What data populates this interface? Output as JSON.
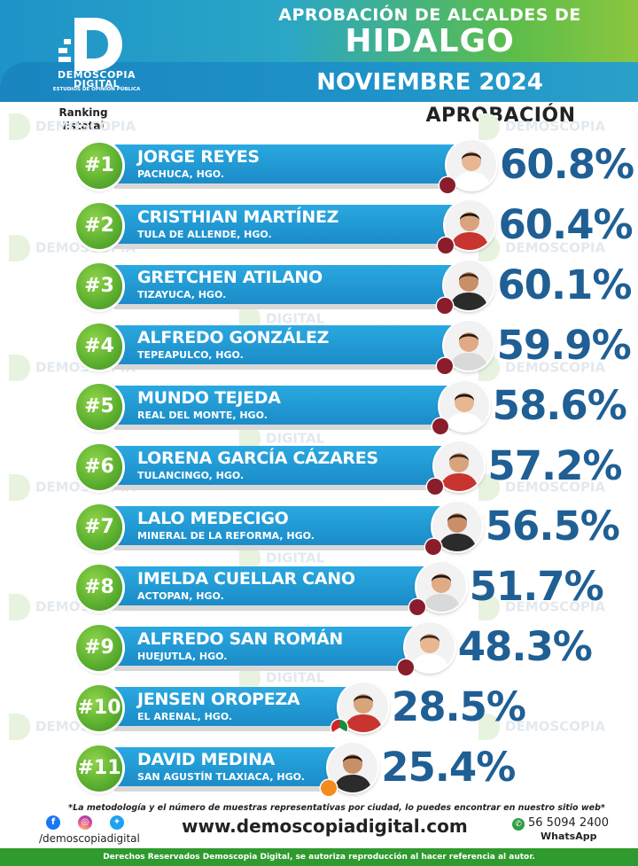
{
  "brand": {
    "name_line1": "DEMOSCOPIA",
    "name_line2": "DIGITAL",
    "tagline": "ESTUDIOS DE OPINIÓN PÚBLICA",
    "colors": {
      "blue": "#1e93c9",
      "green": "#5aae2e",
      "dark_blue": "#1f5f94"
    }
  },
  "header": {
    "line1": "APROBACIÓN DE ALCALDES DE",
    "line2": "HIDALGO",
    "line3": "NOVIEMBRE 2024"
  },
  "labels": {
    "ranking": "Ranking",
    "estatal": "Estatal",
    "aprobacion": "APROBACIÓN"
  },
  "chart_data": {
    "type": "bar",
    "title": "APROBACIÓN DE ALCALDES DE HIDALGO",
    "subtitle": "NOVIEMBRE 2024",
    "ylabel": "APROBACIÓN",
    "unit": "%",
    "categories": [
      "JORGE REYES",
      "CRISTHIAN MARTÍNEZ",
      "GRETCHEN ATILANO",
      "ALFREDO GONZÁLEZ",
      "MUNDO TEJEDA",
      "LORENA GARCÍA CÁZARES",
      "LALO MEDECIGO",
      "IMELDA CUELLAR CANO",
      "ALFREDO SAN ROMÁN",
      "JENSEN OROPEZA",
      "DAVID MEDINA"
    ],
    "values": [
      60.8,
      60.4,
      60.1,
      59.9,
      58.6,
      57.2,
      56.5,
      51.7,
      48.3,
      28.5,
      25.4
    ],
    "rows": [
      {
        "rank": "#1",
        "name": "JORGE REYES",
        "city": "PACHUCA, HGO.",
        "value": 60.8,
        "label": "60.8%",
        "party": "morena"
      },
      {
        "rank": "#2",
        "name": "CRISTHIAN MARTÍNEZ",
        "city": "TULA DE ALLENDE, HGO.",
        "value": 60.4,
        "label": "60.4%",
        "party": "morena"
      },
      {
        "rank": "#3",
        "name": "GRETCHEN ATILANO",
        "city": "TIZAYUCA, HGO.",
        "value": 60.1,
        "label": "60.1%",
        "party": "morena"
      },
      {
        "rank": "#4",
        "name": "ALFREDO GONZÁLEZ",
        "city": "TEPEAPULCO, HGO.",
        "value": 59.9,
        "label": "59.9%",
        "party": "morena"
      },
      {
        "rank": "#5",
        "name": "MUNDO TEJEDA",
        "city": "REAL DEL MONTE, HGO.",
        "value": 58.6,
        "label": "58.6%",
        "party": "morena"
      },
      {
        "rank": "#6",
        "name": "LORENA GARCÍA CÁZARES",
        "city": "TULANCINGO, HGO.",
        "value": 57.2,
        "label": "57.2%",
        "party": "morena"
      },
      {
        "rank": "#7",
        "name": "LALO MEDECIGO",
        "city": "MINERAL DE LA REFORMA, HGO.",
        "value": 56.5,
        "label": "56.5%",
        "party": "morena"
      },
      {
        "rank": "#8",
        "name": "IMELDA CUELLAR CANO",
        "city": "ACTOPAN, HGO.",
        "value": 51.7,
        "label": "51.7%",
        "party": "morena"
      },
      {
        "rank": "#9",
        "name": "ALFREDO SAN ROMÁN",
        "city": "HUEJUTLA, HGO.",
        "value": 48.3,
        "label": "48.3%",
        "party": "morena"
      },
      {
        "rank": "#10",
        "name": "JENSEN OROPEZA",
        "city": "EL ARENAL, HGO.",
        "value": 28.5,
        "label": "28.5%",
        "party": "pri"
      },
      {
        "rank": "#11",
        "name": "DAVID MEDINA",
        "city": "SAN AGUSTÍN TLAXIACA, HGO.",
        "value": 25.4,
        "label": "25.4%",
        "party": "mc"
      }
    ]
  },
  "footer": {
    "note": "*La metodología y el número de muestras representativas por ciudad, lo puedes encontrar en nuestro sitio web*",
    "handle": "/demoscopiadigital",
    "website": "www.demoscopiadigital.com",
    "phone": "56 5094 2400",
    "whatsapp": "WhatsApp",
    "copyright": "Derechos Reservados Demoscopia Digital, se autoriza reproducción al hacer referencia al autor.",
    "social_icons": [
      "facebook-icon",
      "instagram-icon",
      "twitter-icon"
    ]
  }
}
